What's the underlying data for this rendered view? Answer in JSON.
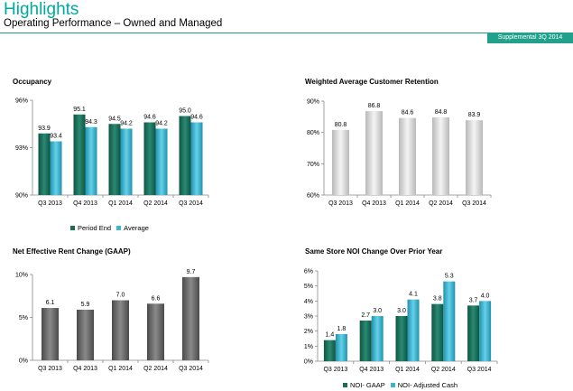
{
  "header": {
    "title": "Highlights",
    "subtitle": "Operating Performance – Owned and Managed",
    "badge": "Supplemental 3Q 2014"
  },
  "colors": {
    "teal_dark": "#1a6e58",
    "teal_light": "#3bb6d2",
    "gray_light": "#d6d6d6",
    "gray_dark": "#6a6a6a",
    "accent": "#00a99d"
  },
  "chart_data": [
    {
      "id": "occupancy",
      "type": "bar",
      "title": "Occupancy",
      "categories": [
        "Q3 2013",
        "Q4 2013",
        "Q1 2014",
        "Q2 2014",
        "Q3 2014"
      ],
      "series": [
        {
          "name": "Period End",
          "values": [
            93.9,
            95.1,
            94.5,
            94.6,
            95.0
          ],
          "labels": [
            "93.9",
            "95.1",
            "94.5",
            "94.6",
            "95.0"
          ]
        },
        {
          "name": "Average",
          "values": [
            93.4,
            94.3,
            94.2,
            94.2,
            94.6
          ],
          "labels": [
            "93.4",
            "94.3",
            "94.2",
            "94.2",
            "94.6"
          ]
        }
      ],
      "ylim": [
        90,
        96
      ],
      "yticks": [
        90,
        93,
        96
      ],
      "ytick_labels": [
        "90%",
        "93%",
        "96%"
      ],
      "legend": "bottom",
      "grid": false
    },
    {
      "id": "retention",
      "type": "bar",
      "title": "Weighted Average Customer Retention",
      "categories": [
        "Q3 2013",
        "Q4 2013",
        "Q1 2014",
        "Q2 2014",
        "Q3 2014"
      ],
      "series": [
        {
          "values": [
            80.8,
            86.8,
            84.6,
            84.8,
            83.9
          ],
          "labels": [
            "80.8",
            "86.8",
            "84.6",
            "84.8",
            "83.9"
          ]
        }
      ],
      "ylim": [
        60,
        90
      ],
      "yticks": [
        60,
        70,
        80,
        90
      ],
      "ytick_labels": [
        "60%",
        "70%",
        "80%",
        "90%"
      ],
      "grid": false
    },
    {
      "id": "rent",
      "type": "bar",
      "title": "Net Effective Rent Change (GAAP)",
      "categories": [
        "Q3 2013",
        "Q4 2013",
        "Q1 2014",
        "Q2 2014",
        "Q3 2014"
      ],
      "series": [
        {
          "values": [
            6.1,
            5.9,
            7.0,
            6.6,
            9.7
          ],
          "labels": [
            "6.1",
            "5.9",
            "7.0",
            "6.6",
            "9.7"
          ]
        }
      ],
      "ylim": [
        0,
        10
      ],
      "yticks": [
        0,
        5,
        10
      ],
      "ytick_labels": [
        "0%",
        "5%",
        "10%"
      ],
      "grid": false
    },
    {
      "id": "noi",
      "type": "bar",
      "title": "Same Store NOI Change Over Prior Year",
      "categories": [
        "Q3 2013",
        "Q4 2013",
        "Q1 2014",
        "Q2 2014",
        "Q3 2014"
      ],
      "series": [
        {
          "name": "NOI- GAAP",
          "values": [
            1.4,
            2.7,
            3.0,
            3.8,
            3.7
          ],
          "labels": [
            "1.4",
            "2.7",
            "3.0",
            "3.8",
            "3.7"
          ]
        },
        {
          "name": "NOI- Adjusted Cash",
          "values": [
            1.8,
            3.0,
            4.1,
            5.3,
            4.0
          ],
          "labels": [
            "1.8",
            "3.0",
            "4.1",
            "5.3",
            "4.0"
          ]
        }
      ],
      "ylim": [
        0,
        6
      ],
      "yticks": [
        0,
        1,
        2,
        3,
        4,
        5,
        6
      ],
      "ytick_labels": [
        "0%",
        "1%",
        "2%",
        "3%",
        "4%",
        "5%",
        "6%"
      ],
      "legend": "bottom",
      "grid": false
    }
  ]
}
